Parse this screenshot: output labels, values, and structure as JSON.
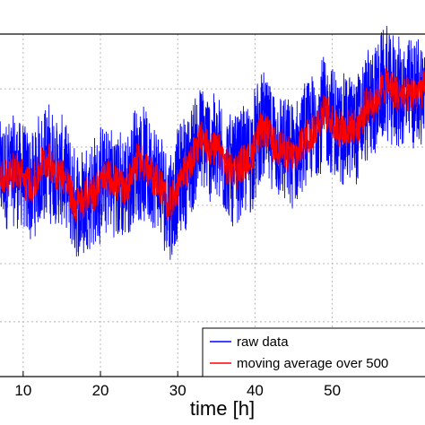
{
  "chart_data": {
    "type": "line",
    "xlabel": "time [h]",
    "ylabel": "",
    "title": "",
    "xlim": [
      7,
      62
    ],
    "x_ticks": [
      10,
      20,
      30,
      40,
      50
    ],
    "x_tick_labels": [
      "10",
      "20",
      "30",
      "40",
      "50"
    ],
    "grid": true,
    "legend_position": "bottom-right",
    "series": [
      {
        "name": "raw data",
        "color": "#0000ff",
        "x": [
          7,
          9,
          11,
          13,
          15,
          17,
          19,
          21,
          23,
          25,
          27,
          29,
          31,
          33,
          35,
          37,
          39,
          41,
          43,
          45,
          47,
          49,
          51,
          53,
          55,
          57,
          59,
          61,
          62
        ],
        "y_center": [
          0.58,
          0.6,
          0.56,
          0.63,
          0.59,
          0.5,
          0.54,
          0.58,
          0.55,
          0.63,
          0.58,
          0.51,
          0.6,
          0.69,
          0.66,
          0.6,
          0.63,
          0.72,
          0.67,
          0.64,
          0.71,
          0.77,
          0.72,
          0.73,
          0.8,
          0.85,
          0.82,
          0.83,
          0.84
        ],
        "y_spread": 0.16
      },
      {
        "name": "moving average over 500",
        "color": "#ff0000",
        "x": [
          7,
          9,
          11,
          13,
          15,
          17,
          19,
          21,
          23,
          25,
          27,
          29,
          31,
          33,
          35,
          37,
          39,
          41,
          43,
          45,
          47,
          49,
          51,
          53,
          55,
          57,
          59,
          61,
          62
        ],
        "y_center": [
          0.58,
          0.6,
          0.56,
          0.63,
          0.59,
          0.5,
          0.54,
          0.58,
          0.55,
          0.63,
          0.58,
          0.51,
          0.6,
          0.69,
          0.66,
          0.6,
          0.63,
          0.72,
          0.67,
          0.64,
          0.71,
          0.77,
          0.72,
          0.73,
          0.8,
          0.85,
          0.82,
          0.83,
          0.84
        ],
        "y_spread": 0.055
      }
    ]
  }
}
